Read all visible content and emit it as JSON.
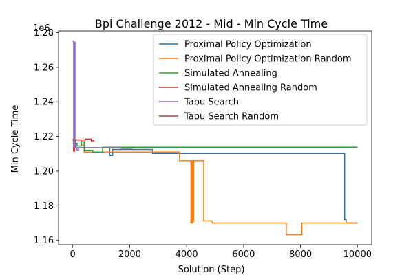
{
  "chart_data": {
    "type": "line",
    "title": "Bpi Challenge 2012 - Mid - Min Cycle Time",
    "xlabel": "Solution (Step)",
    "ylabel": "Min Cycle Time",
    "y_offset_label": "1e6",
    "xlim": [
      -500,
      10500
    ],
    "ylim": [
      1.1575,
      1.281
    ],
    "x_ticks": [
      0,
      2000,
      4000,
      6000,
      8000,
      10000
    ],
    "x_tick_labels": [
      "0",
      "2000",
      "4000",
      "6000",
      "8000",
      "10000"
    ],
    "y_ticks": [
      1.16,
      1.18,
      1.2,
      1.22,
      1.24,
      1.26,
      1.28
    ],
    "y_tick_labels": [
      "1.16",
      "1.18",
      "1.20",
      "1.22",
      "1.24",
      "1.26",
      "1.28"
    ],
    "grid": false,
    "legend_position": "top-right",
    "series": [
      {
        "name": "Proximal Policy Optimization",
        "color": "#1f77b4",
        "points": [
          [
            0,
            1.2175
          ],
          [
            100,
            1.2175
          ],
          [
            100,
            1.2135
          ],
          [
            1300,
            1.2135
          ],
          [
            1300,
            1.209
          ],
          [
            1400,
            1.209
          ],
          [
            1400,
            1.2125
          ],
          [
            2800,
            1.2125
          ],
          [
            2800,
            1.2102
          ],
          [
            9550,
            1.2102
          ],
          [
            9550,
            1.172
          ],
          [
            9600,
            1.172
          ],
          [
            9600,
            1.17
          ],
          [
            10000,
            1.17
          ]
        ]
      },
      {
        "name": "Proximal Policy Optimization Random",
        "color": "#ff7f0e",
        "points": [
          [
            0,
            1.218
          ],
          [
            300,
            1.218
          ],
          [
            300,
            1.215
          ],
          [
            400,
            1.215
          ],
          [
            400,
            1.211
          ],
          [
            3750,
            1.211
          ],
          [
            3750,
            1.206
          ],
          [
            4150,
            1.206
          ],
          [
            4150,
            1.17
          ],
          [
            4170,
            1.17
          ],
          [
            4170,
            1.206
          ],
          [
            4190,
            1.206
          ],
          [
            4190,
            1.17
          ],
          [
            4210,
            1.17
          ],
          [
            4210,
            1.206
          ],
          [
            4230,
            1.206
          ],
          [
            4230,
            1.171
          ],
          [
            4250,
            1.171
          ],
          [
            4250,
            1.206
          ],
          [
            4600,
            1.206
          ],
          [
            4600,
            1.1712
          ],
          [
            4900,
            1.1712
          ],
          [
            4900,
            1.17
          ],
          [
            7500,
            1.17
          ],
          [
            7500,
            1.1632
          ],
          [
            8050,
            1.1632
          ],
          [
            8050,
            1.17
          ],
          [
            10000,
            1.17
          ]
        ]
      },
      {
        "name": "Simulated Annealing",
        "color": "#2ca02c",
        "points": [
          [
            0,
            1.216
          ],
          [
            150,
            1.216
          ],
          [
            150,
            1.2145
          ],
          [
            300,
            1.2145
          ],
          [
            300,
            1.217
          ],
          [
            400,
            1.217
          ],
          [
            400,
            1.212
          ],
          [
            700,
            1.212
          ],
          [
            700,
            1.211
          ],
          [
            1050,
            1.211
          ],
          [
            1050,
            1.2138
          ],
          [
            10000,
            1.2138
          ]
        ]
      },
      {
        "name": "Simulated Annealing Random",
        "color": "#d62728",
        "points": [
          [
            0,
            1.2185
          ],
          [
            30,
            1.2185
          ],
          [
            30,
            1.2115
          ],
          [
            60,
            1.2115
          ],
          [
            60,
            1.218
          ],
          [
            450,
            1.218
          ],
          [
            450,
            1.2185
          ],
          [
            650,
            1.2185
          ],
          [
            650,
            1.2175
          ],
          [
            750,
            1.2175
          ]
        ]
      },
      {
        "name": "Tabu Search",
        "color": "#9467bd",
        "points": [
          [
            0,
            1.2752
          ],
          [
            30,
            1.2752
          ],
          [
            30,
            1.214
          ],
          [
            60,
            1.214
          ],
          [
            60,
            1.2745
          ],
          [
            80,
            1.2745
          ],
          [
            80,
            1.2135
          ],
          [
            150,
            1.2135
          ],
          [
            150,
            1.212
          ],
          [
            200,
            1.212
          ],
          [
            200,
            1.2135
          ],
          [
            1700,
            1.2135
          ],
          [
            1700,
            1.2132
          ],
          [
            2100,
            1.2132
          ]
        ]
      },
      {
        "name": "Tabu Search Random",
        "color": "#8c564b",
        "points": [
          [
            0,
            1.218
          ],
          [
            120,
            1.218
          ]
        ]
      }
    ]
  }
}
